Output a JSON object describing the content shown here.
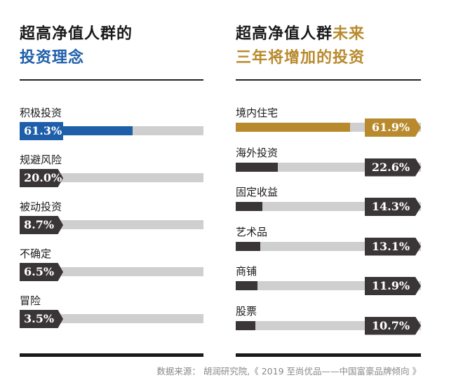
{
  "colors": {
    "blue": "#1f5fa9",
    "gold": "#b88a2d",
    "dark": "#3a3536",
    "track": "#cfcfcf",
    "title": "#1a1a1a"
  },
  "chart_data": [
    {
      "type": "bar",
      "title_line1": "超高净值人群的",
      "title_line2": "投资理念",
      "categories": [
        "积极投资",
        "规避风险",
        "被动投资",
        "不确定",
        "冒险"
      ],
      "values": [
        61.3,
        20.0,
        8.7,
        6.5,
        3.5
      ],
      "value_labels": [
        "61.3%",
        "20.0%",
        "8.7%",
        "6.5%",
        "3.5%"
      ],
      "unit": "%",
      "ylim": [
        0,
        100
      ],
      "highlight_index": 0
    },
    {
      "type": "bar",
      "title_line1_part1": "超高净值人群",
      "title_line1_part2": "未来",
      "title_line2": "三年将增加的投资",
      "categories": [
        "境内住宅",
        "海外投资",
        "固定收益",
        "艺术品",
        "商铺",
        "股票"
      ],
      "values": [
        61.9,
        22.6,
        14.3,
        13.1,
        11.9,
        10.7
      ],
      "value_labels": [
        "61.9%",
        "22.6%",
        "14.3%",
        "13.1%",
        "11.9%",
        "10.7%"
      ],
      "unit": "%",
      "ylim": [
        0,
        100
      ],
      "highlight_index": 0
    }
  ],
  "source": "数据来源： 胡润研究院,《 2019 至尚优品——中国富豪品牌倾向 》"
}
